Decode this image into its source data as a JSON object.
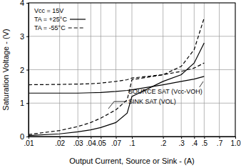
{
  "chart_data": {
    "type": "line",
    "legend_title": "Vcc = 15V",
    "x_label": "Output Current, Source or Sink - (A)",
    "y_label": "Saturation Voltage - (V)",
    "log": "x",
    "grid": true,
    "legend": "upper left",
    "xlim": [
      0.01,
      1.0
    ],
    "ylim": [
      0,
      4
    ],
    "xticks": [
      {
        "value": 0.01,
        "label": ".01"
      },
      {
        "value": 0.02,
        "label": ".02"
      },
      {
        "value": 0.03,
        "label": ".03"
      },
      {
        "value": 0.04,
        "label": ".04"
      },
      {
        "value": 0.05,
        "label": ".05"
      },
      {
        "value": 0.07,
        "label": ".07"
      },
      {
        "value": 0.1,
        "label": ".1"
      },
      {
        "value": 0.2,
        "label": ".2"
      },
      {
        "value": 0.3,
        "label": ".3"
      },
      {
        "value": 0.4,
        "label": ".4"
      },
      {
        "value": 0.5,
        "label": ".5"
      },
      {
        "value": 0.7,
        "label": ".7"
      },
      {
        "value": 1.0,
        "label": "1.0"
      }
    ],
    "yticks": [
      0,
      1,
      2,
      3,
      4
    ],
    "x": [
      0.01,
      0.02,
      0.03,
      0.04,
      0.05,
      0.07,
      0.09,
      0.1,
      0.2,
      0.3,
      0.4,
      0.5
    ],
    "series": [
      {
        "name": "TA = +25°C",
        "color": "#000000",
        "line_style": "solid",
        "values": [
          1.3,
          1.3,
          1.3,
          1.31,
          1.32,
          1.35,
          1.38,
          1.4,
          1.55,
          1.65,
          1.72,
          1.8
        ]
      },
      {
        "name": "TA = -55°C",
        "color": "#000000",
        "line_style": "dashed",
        "values": [
          1.55,
          1.56,
          1.57,
          1.58,
          1.6,
          1.65,
          1.7,
          1.75,
          1.85,
          1.95,
          2.05,
          2.2
        ]
      },
      {
        "name": "TA = +25°C",
        "color": "#000000",
        "line_style": "solid",
        "values": [
          0.03,
          0.08,
          0.14,
          0.2,
          0.27,
          0.42,
          0.7,
          1.2,
          1.65,
          1.85,
          2.2,
          2.8
        ]
      },
      {
        "name": "TA = -55°C",
        "color": "#000000",
        "line_style": "dashed",
        "values": [
          0.06,
          0.18,
          0.3,
          0.42,
          0.55,
          0.8,
          1.1,
          1.7,
          1.85,
          2.1,
          2.6,
          3.55
        ]
      }
    ],
    "annotations": [
      {
        "text": "SOURCE SAT (Vcc-VOH)"
      },
      {
        "text": "SINK SAT (VOL)"
      }
    ]
  }
}
